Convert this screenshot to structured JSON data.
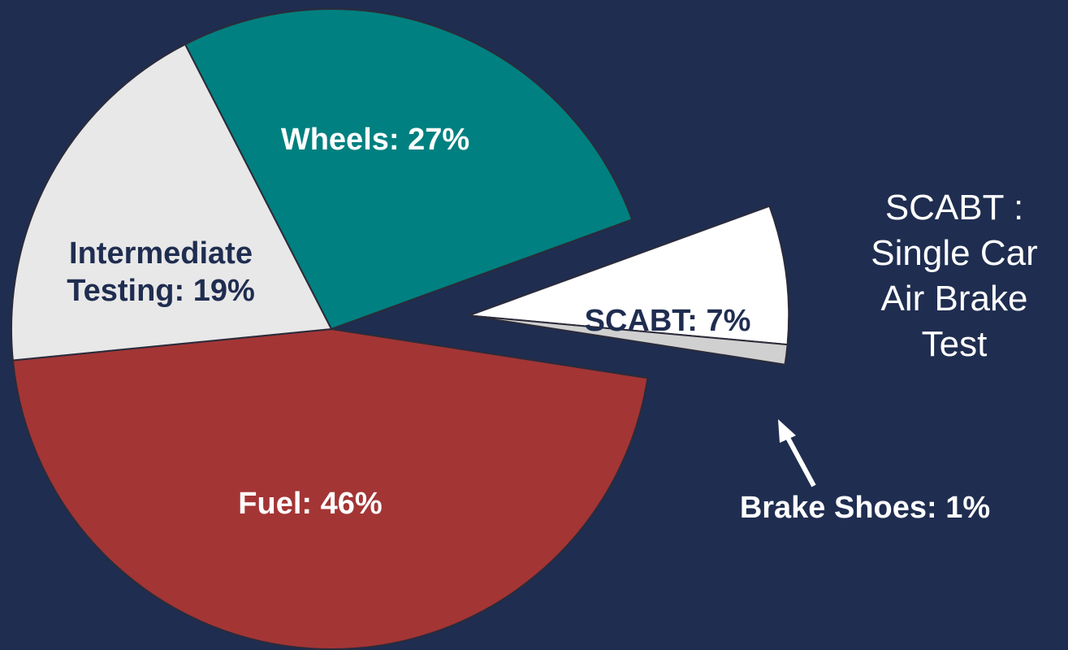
{
  "chart_data": {
    "type": "pie",
    "values": [
      27,
      7,
      1,
      46,
      19
    ],
    "value_labels": [
      "Wheels: 27%",
      "SCABT: 7%",
      "Brake Shoes: 1%",
      "Fuel: 46%",
      "Intermediate Testing: 19%"
    ],
    "colors": [
      "#008080",
      "#ffffff",
      "#d0d0d0",
      "#a33535",
      "#e8e8e8"
    ],
    "annotation": "SCABT : Single Car Air Brake Test"
  }
}
